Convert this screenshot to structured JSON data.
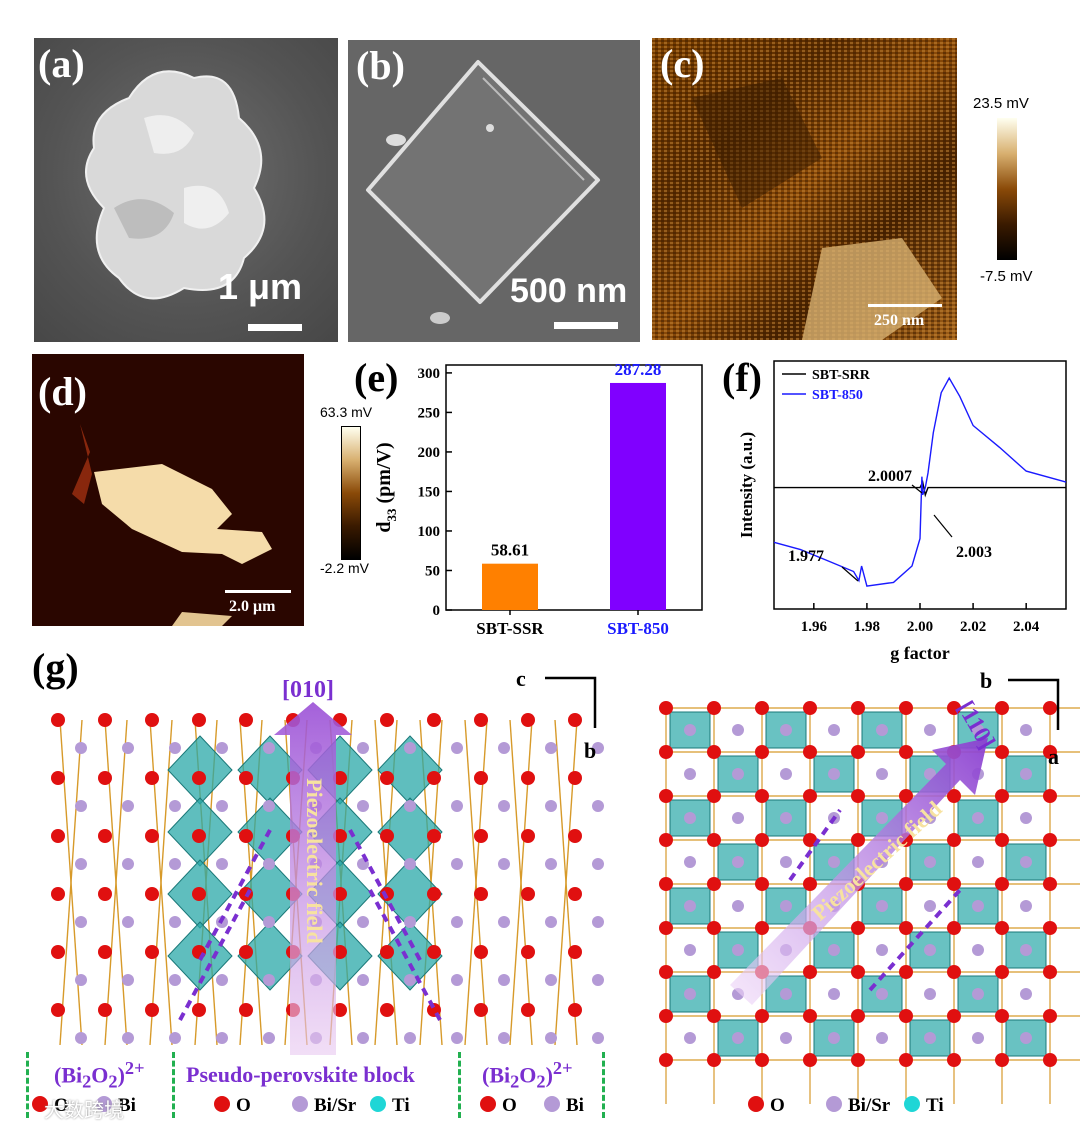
{
  "panels": {
    "a": {
      "label": "(a)",
      "scale": "1 μm"
    },
    "b": {
      "label": "(b)",
      "scale": "500 nm"
    },
    "c": {
      "label": "(c)",
      "scale": "250 nm",
      "cbar_max": "23.5 mV",
      "cbar_min": "-7.5 mV"
    },
    "d": {
      "label": "(d)",
      "scale": "2.0 μm",
      "cbar_max": "63.3 mV",
      "cbar_min": "-2.2 mV"
    },
    "e": {
      "label": "(e)"
    },
    "f": {
      "label": "(f)"
    },
    "g": {
      "label": "(g)"
    }
  },
  "chart_data": [
    {
      "type": "bar",
      "panel": "e",
      "categories": [
        "SBT-SSR",
        "SBT-850"
      ],
      "values": [
        58.61,
        287.28
      ],
      "value_labels": [
        "58.61",
        "287.28"
      ],
      "colors": [
        "#ff8000",
        "#8000ff"
      ],
      "category_colors": [
        "#000000",
        "#1a1aff"
      ],
      "ylabel": "d33 (pm/V)",
      "ylim": [
        0,
        310
      ],
      "yticks": [
        0,
        50,
        100,
        150,
        200,
        250,
        300
      ],
      "grid": false
    },
    {
      "type": "line",
      "panel": "f",
      "xlabel": "g factor",
      "ylabel": "Intensity (a.u.)",
      "xlim": [
        1.945,
        2.055
      ],
      "xticks": [
        "1.96",
        "1.98",
        "2.00",
        "2.02",
        "2.04"
      ],
      "xtick_values": [
        1.96,
        1.98,
        2.0,
        2.02,
        2.04
      ],
      "legend_position": "top-left",
      "series": [
        {
          "name": "SBT-SRR",
          "color": "#000000",
          "x": [
            1.945,
            1.96,
            1.98,
            1.99,
            2.0,
            2.001,
            2.002,
            2.003,
            2.01,
            2.03,
            2.055
          ],
          "y": [
            0.4,
            0.4,
            0.4,
            0.4,
            0.4,
            0.43,
            0.36,
            0.4,
            0.4,
            0.4,
            0.4
          ]
        },
        {
          "name": "SBT-850",
          "color": "#1a1aff",
          "x": [
            1.945,
            1.955,
            1.965,
            1.975,
            1.977,
            1.978,
            1.98,
            1.99,
            1.997,
            2.0,
            2.0007,
            2.001,
            2.002,
            2.003,
            2.005,
            2.008,
            2.011,
            2.015,
            2.02,
            2.03,
            2.04,
            2.055
          ],
          "y": [
            0.1,
            0.06,
            0.0,
            -0.06,
            -0.11,
            -0.03,
            -0.14,
            -0.12,
            -0.03,
            0.12,
            0.46,
            0.36,
            0.4,
            0.48,
            0.7,
            0.92,
            1.0,
            0.9,
            0.74,
            0.62,
            0.49,
            0.43
          ]
        }
      ],
      "annotations": [
        "2.0007",
        "2.003",
        "1.977"
      ]
    }
  ],
  "g": {
    "axis_left_c": "c",
    "axis_left_b": "b",
    "axis_right_b": "b",
    "axis_right_a": "a",
    "dir_left": "[010]",
    "dir_right": "[110]",
    "field_left": "Piezoelectric field",
    "field_right": "Piezoelectric field",
    "block_left": "(Bi2O2)2+",
    "block_mid": "Pseudo-perovskite block",
    "block_right": "(Bi2O2)2+",
    "legend_left": [
      {
        "label": "O",
        "color": "#e01010"
      },
      {
        "label": "Bi/Sr",
        "color": "#b49ad6"
      },
      {
        "label": "Ti",
        "color": "#1fd6d6"
      }
    ],
    "legend_left_outer": [
      {
        "label": "O",
        "color": "#e01010"
      },
      {
        "label": "Bi",
        "color": "#b49ad6"
      }
    ],
    "legend_right": [
      {
        "label": "O",
        "color": "#e01010"
      },
      {
        "label": "Bi/Sr",
        "color": "#b49ad6"
      },
      {
        "label": "Ti",
        "color": "#1fd6d6"
      }
    ],
    "watermark": "大数跨境"
  }
}
